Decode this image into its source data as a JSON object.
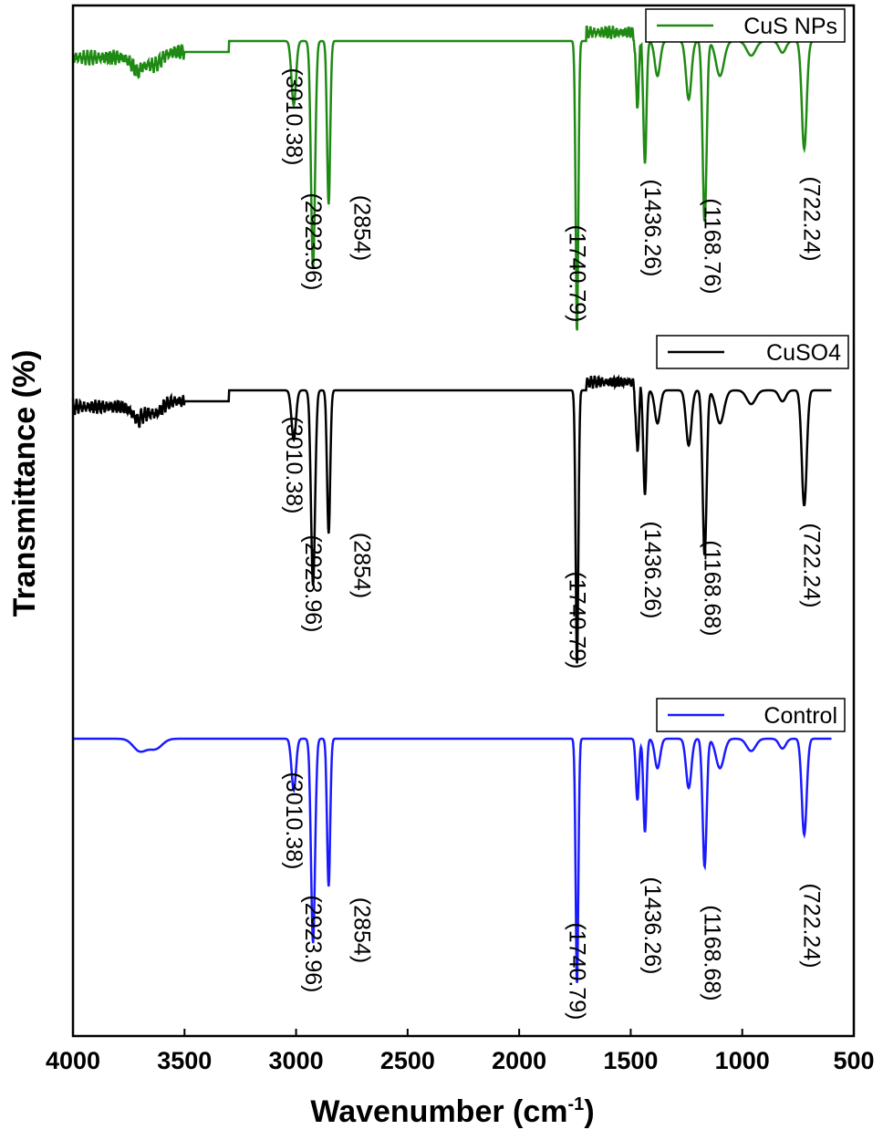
{
  "chart_data": {
    "type": "line",
    "xlabel": "Wavenumber (cm",
    "xlabel_sup": "-1",
    "xlabel_close": ")",
    "ylabel": "Transmittance (%)",
    "xlim": [
      4000,
      500
    ],
    "x_reversed": true,
    "x_ticks": [
      "4000",
      "3500",
      "3000",
      "2500",
      "2000",
      "1500",
      "1000",
      "500"
    ],
    "y_ticks_shown": false,
    "grid": false,
    "legend_placement": "top-right of each trace",
    "offset_traces": true,
    "series": [
      {
        "name": "CuS NPs",
        "color": "#1f8a13",
        "peaks": [
          {
            "label": "(3010.38)",
            "x": 3010.38,
            "depth": 0.22
          },
          {
            "label": "(2923.96)",
            "x": 2923.96,
            "depth": 0.78
          },
          {
            "label": "(2854)",
            "x": 2854,
            "depth": 0.56
          },
          {
            "label": "(1740.79)",
            "x": 1740.79,
            "depth": 1.0
          },
          {
            "label": "(1436.26)",
            "x": 1436.26,
            "depth": 0.42
          },
          {
            "label": "(1168.76)",
            "x": 1168.76,
            "depth": 0.62
          },
          {
            "label": "(722.24)",
            "x": 722.24,
            "depth": 0.37
          }
        ]
      },
      {
        "name": "CuSO4",
        "color": "#000000",
        "peaks": [
          {
            "label": "(3010.38)",
            "x": 3010.38,
            "depth": 0.18
          },
          {
            "label": "(2923.96)",
            "x": 2923.96,
            "depth": 0.71
          },
          {
            "label": "(2854)",
            "x": 2854,
            "depth": 0.52
          },
          {
            "label": "(1740.79)",
            "x": 1740.79,
            "depth": 1.0
          },
          {
            "label": "(1436.26)",
            "x": 1436.26,
            "depth": 0.38
          },
          {
            "label": "(1168.68)",
            "x": 1168.68,
            "depth": 0.6
          },
          {
            "label": "(722.24)",
            "x": 722.24,
            "depth": 0.42
          }
        ]
      },
      {
        "name": "Control",
        "color": "#1a1aff",
        "peaks": [
          {
            "label": "(3010.38)",
            "x": 3010.38,
            "depth": 0.21
          },
          {
            "label": "(2923.96)",
            "x": 2923.96,
            "depth": 0.83
          },
          {
            "label": "(2854)",
            "x": 2854,
            "depth": 0.6
          },
          {
            "label": "(1740.79)",
            "x": 1740.79,
            "depth": 1.0
          },
          {
            "label": "(1436.26)",
            "x": 1436.26,
            "depth": 0.38
          },
          {
            "label": "(1168.68)",
            "x": 1168.68,
            "depth": 0.52
          },
          {
            "label": "(722.24)",
            "x": 722.24,
            "depth": 0.39
          }
        ]
      }
    ]
  }
}
